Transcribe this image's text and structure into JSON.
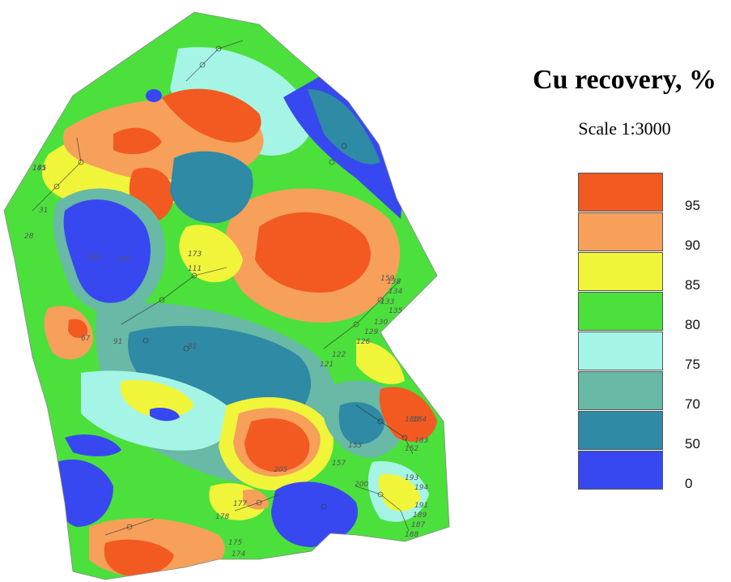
{
  "title": "Cu recovery, %",
  "scale": "Scale 1:3000",
  "legend": [
    {
      "label": "95",
      "color": "#f25a22"
    },
    {
      "label": "90",
      "color": "#f7a05a"
    },
    {
      "label": "85",
      "color": "#f0f53a"
    },
    {
      "label": "80",
      "color": "#4be03c"
    },
    {
      "label": "75",
      "color": "#a5f5e6"
    },
    {
      "label": "70",
      "color": "#68b9a5"
    },
    {
      "label": "50",
      "color": "#2e8aa5"
    },
    {
      "label": "0",
      "color": "#3848f0"
    }
  ],
  "well_labels": [
    "141",
    "31",
    "28",
    "149",
    "147",
    "111",
    "173",
    "138",
    "134",
    "133",
    "135",
    "130",
    "129",
    "126",
    "122",
    "121",
    "81",
    "91",
    "67",
    "188",
    "187",
    "189",
    "191",
    "194",
    "193",
    "200",
    "205",
    "177",
    "178",
    "174",
    "175",
    "184",
    "183",
    "152",
    "153",
    "159",
    "186",
    "157",
    "185"
  ]
}
